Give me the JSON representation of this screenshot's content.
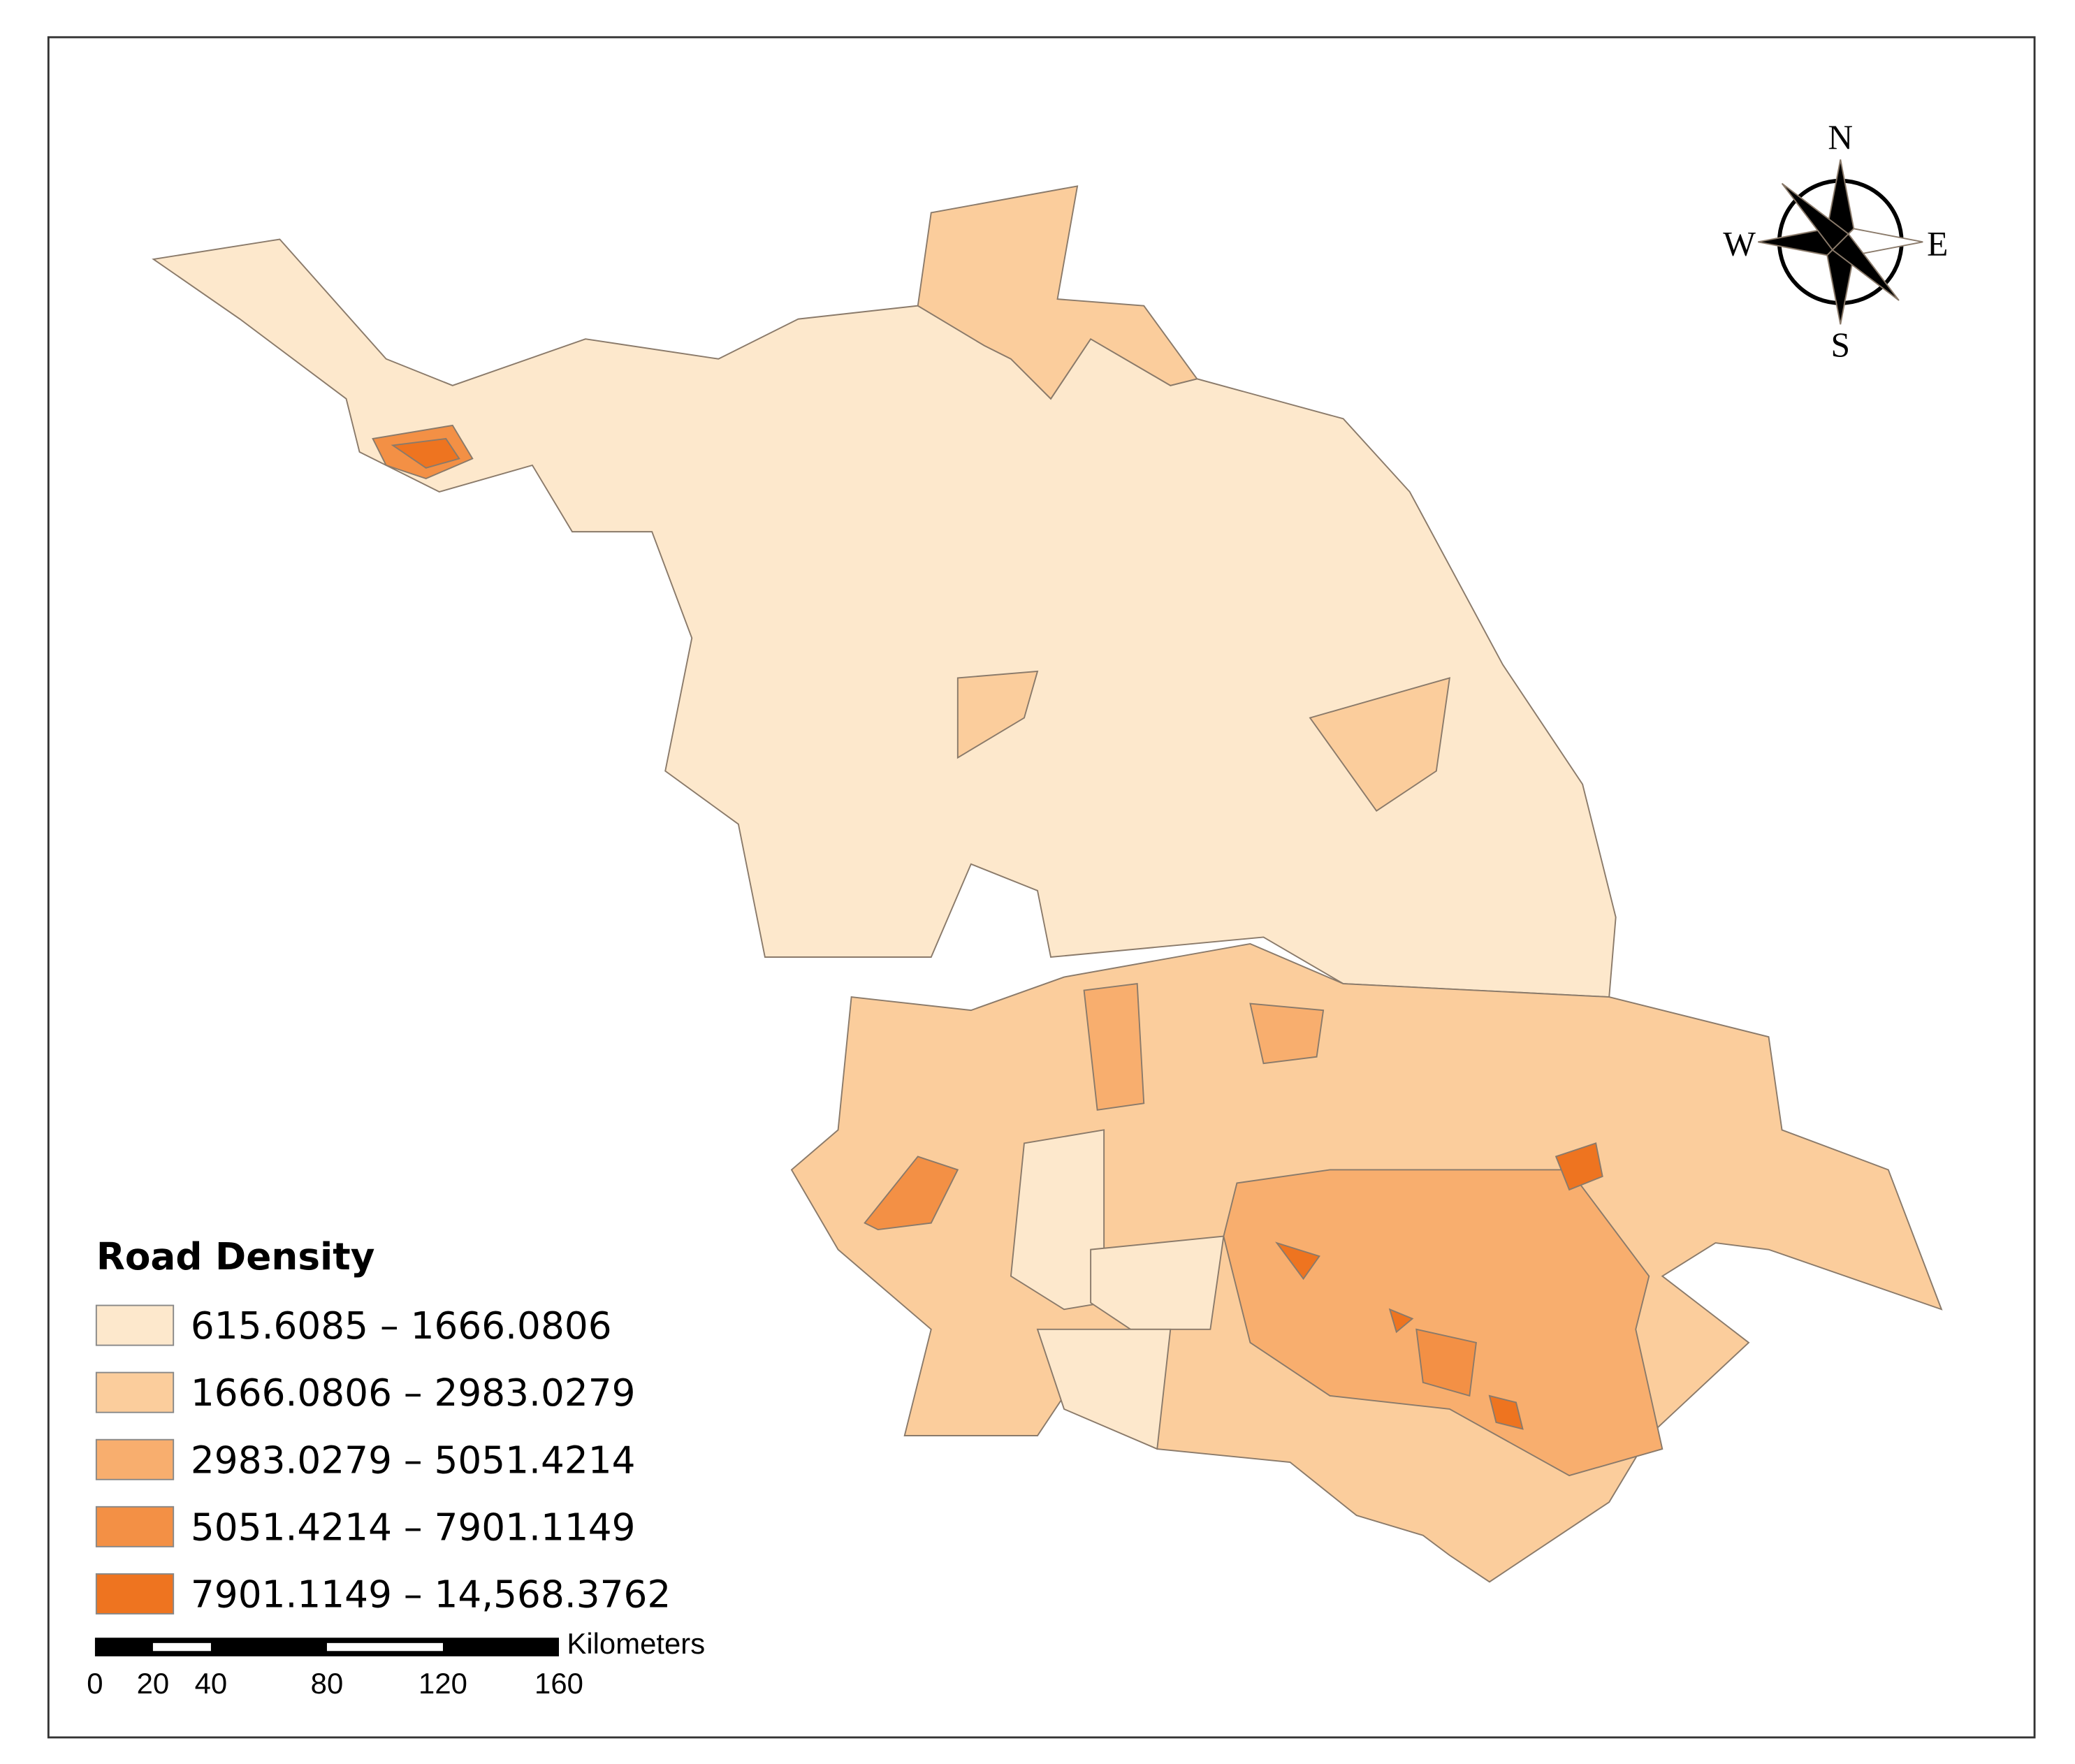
{
  "legend": {
    "title": "Road Density",
    "items": [
      {
        "label": "615.6085 – 1666.0806",
        "color": "#fde8cc"
      },
      {
        "label": "1666.0806 – 2983.0279",
        "color": "#fbcd9c"
      },
      {
        "label": "2983.0279 – 5051.4214",
        "color": "#f8ae6e"
      },
      {
        "label": "5051.4214 – 7901.1149",
        "color": "#f39045"
      },
      {
        "label": "7901.1149 – 14,568.3762",
        "color": "#ee7420"
      }
    ]
  },
  "scale_bar": {
    "unit": "Kilometers",
    "ticks": [
      0,
      20,
      40,
      80,
      120,
      160
    ]
  },
  "compass": {
    "north": "N",
    "south": "S",
    "east": "E",
    "west": "W"
  }
}
